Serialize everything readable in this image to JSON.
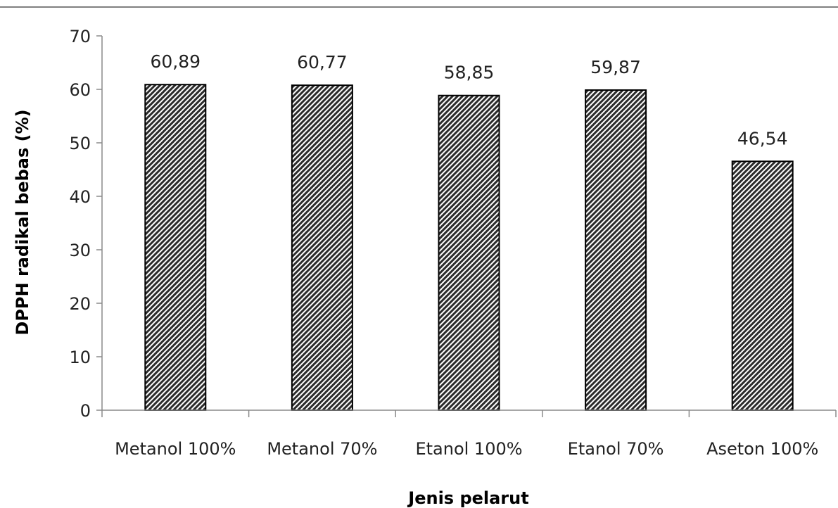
{
  "chart_data": {
    "type": "bar",
    "title": "",
    "categories": [
      "Metanol 100%",
      "Metanol 70%",
      "Etanol 100%",
      "Etanol 70%",
      "Aseton 100%"
    ],
    "values": [
      60.89,
      60.77,
      58.85,
      59.87,
      46.54
    ],
    "value_labels": [
      "60,89",
      "60,77",
      "58,85",
      "59,87",
      "46,54"
    ],
    "xlabel": "Jenis pelarut",
    "ylabel": "DPPH radikal bebas (%)",
    "ylim": [
      0,
      70
    ],
    "yticks": [
      0,
      10,
      20,
      30,
      40,
      50,
      60,
      70
    ],
    "grid": false,
    "legend": "none",
    "bar_fill": "hatched diagonal",
    "bar_color": "#000000",
    "background": "#ffffff"
  }
}
